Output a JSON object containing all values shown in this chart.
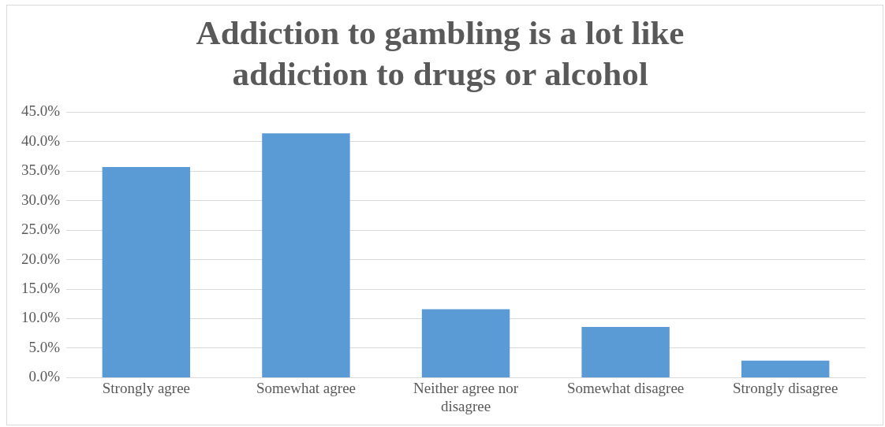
{
  "chart_data": {
    "type": "bar",
    "title": "Addiction to gambling is a lot like addiction to drugs or alcohol",
    "categories": [
      "Strongly agree",
      "Somewhat agree",
      "Neither agree nor disagree",
      "Somewhat disagree",
      "Strongly disagree"
    ],
    "values": [
      35.7,
      41.4,
      11.6,
      8.6,
      2.9
    ],
    "color": "#5b9bd5",
    "ylim": [
      0,
      45
    ],
    "yticks": [
      {
        "value": 0,
        "label": "0.0%"
      },
      {
        "value": 5,
        "label": "5.0%"
      },
      {
        "value": 10,
        "label": "10.0%"
      },
      {
        "value": 15,
        "label": "15.0%"
      },
      {
        "value": 20,
        "label": "20.0%"
      },
      {
        "value": 25,
        "label": "25.0%"
      },
      {
        "value": 30,
        "label": "30.0%"
      },
      {
        "value": 35,
        "label": "35.0%"
      },
      {
        "value": 40,
        "label": "40.0%"
      },
      {
        "value": 45,
        "label": "45.0%"
      }
    ],
    "grid": "y"
  }
}
